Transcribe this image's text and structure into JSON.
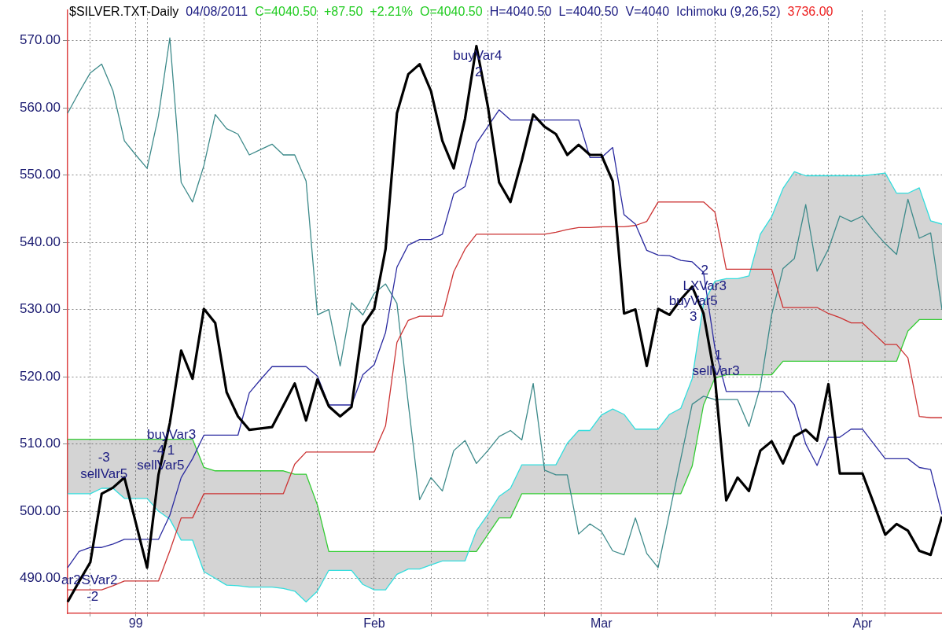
{
  "chart_data": {
    "type": "line",
    "title": "$SILVER.TXT-Daily",
    "categories": [
      null,
      null,
      null,
      null,
      null,
      null,
      "99",
      null,
      null,
      null,
      null,
      null,
      null,
      null,
      null,
      null,
      null,
      null,
      null,
      null,
      null,
      null,
      null,
      null,
      null,
      null,
      null,
      "Feb",
      null,
      null,
      null,
      null,
      null,
      null,
      null,
      null,
      null,
      null,
      null,
      null,
      null,
      null,
      null,
      null,
      null,
      null,
      null,
      "Mar",
      null,
      null,
      null,
      null,
      null,
      null,
      null,
      null,
      null,
      null,
      null,
      null,
      null,
      null,
      null,
      null,
      null,
      null,
      null,
      null,
      null,
      null,
      "Apr",
      null,
      null,
      null,
      null,
      null,
      null,
      null
    ],
    "series": [
      {
        "color": "#000000",
        "values": [
          486.5,
          489.5,
          492.4,
          502.6,
          503.5,
          505.0,
          498.3,
          491.6,
          505.4,
          513.1,
          523.9,
          519.7,
          530.1,
          528.0,
          517.7,
          514.1,
          512.1,
          512.3,
          512.5,
          515.7,
          519.0,
          513.5,
          519.6,
          515.6,
          514.1,
          515.5,
          527.6,
          530.1,
          539.0,
          559.2,
          565.0,
          566.5,
          562.5,
          555.1,
          551.0,
          558.4,
          569.2,
          560.3,
          548.9,
          546.0,
          552.2,
          559.0,
          557.2,
          556.1,
          553.0,
          554.5,
          553.0,
          553.0,
          549.1,
          529.4,
          530.0,
          521.6,
          530.1,
          529.2,
          531.5,
          533.4,
          529.4,
          519.9,
          501.6,
          505.0,
          503.0,
          509.0,
          510.4,
          507.1,
          511.1,
          512.1,
          510.5,
          518.9,
          505.6,
          505.6,
          505.6,
          501.1,
          496.5,
          498.1,
          497.1,
          494.1,
          493.5,
          499.2
        ]
      },
      {
        "color": "#2b2ba0",
        "values": [
          491.6,
          494.0,
          494.6,
          494.6,
          495.1,
          495.8,
          495.8,
          495.8,
          495.8,
          499.4,
          505.0,
          507.8,
          511.3,
          511.3,
          511.3,
          511.3,
          517.6,
          519.6,
          521.5,
          521.5,
          521.5,
          521.5,
          520.1,
          515.8,
          515.8,
          515.8,
          520.3,
          521.8,
          526.6,
          536.3,
          539.6,
          540.4,
          540.4,
          541.2,
          547.2,
          548.3,
          554.7,
          557.2,
          559.7,
          558.2,
          558.2,
          558.2,
          558.2,
          558.2,
          558.2,
          558.2,
          552.6,
          552.6,
          554.1,
          544.1,
          542.7,
          538.8,
          538.1,
          538.0,
          537.3,
          537.1,
          535.5,
          524.3,
          517.8,
          517.8,
          517.8,
          517.8,
          517.8,
          517.8,
          515.8,
          510.0,
          506.8,
          511.0,
          511.0,
          512.2,
          512.2,
          510.0,
          507.8,
          507.8,
          507.8,
          506.5,
          506.2,
          499.5
        ]
      },
      {
        "color": "#cc3333",
        "values": [
          488.3,
          488.3,
          488.3,
          488.3,
          488.9,
          489.6,
          489.6,
          489.6,
          489.6,
          494.1,
          499.0,
          499.0,
          502.6,
          502.6,
          502.6,
          502.6,
          502.6,
          502.6,
          502.6,
          502.6,
          507.0,
          508.8,
          508.8,
          508.8,
          508.8,
          508.8,
          508.8,
          508.8,
          512.7,
          525.1,
          528.4,
          529.0,
          529.0,
          529.0,
          535.6,
          539.0,
          541.2,
          541.2,
          541.2,
          541.2,
          541.2,
          541.2,
          541.2,
          541.5,
          541.9,
          542.2,
          542.2,
          542.3,
          542.3,
          542.3,
          542.5,
          543.1,
          546.0,
          546.0,
          546.0,
          546.0,
          546.0,
          544.5,
          536.0,
          536.0,
          536.0,
          536.0,
          536.0,
          530.3,
          530.3,
          530.3,
          530.3,
          529.4,
          528.8,
          528.0,
          528.0,
          526.4,
          524.8,
          524.8,
          522.8,
          514.1,
          513.9,
          513.9
        ]
      },
      {
        "color": "#3d8a8a",
        "values": [
          559.2,
          562.3,
          565.2,
          566.5,
          562.5,
          555.1,
          553.0,
          551.0,
          558.8,
          570.4,
          548.9,
          546.0,
          551.4,
          559.0,
          556.9,
          556.1,
          553.0,
          553.8,
          554.6,
          553.0,
          553.0,
          549.1,
          529.2,
          530.0,
          521.6,
          531.0,
          529.2,
          532.4,
          533.8,
          530.9,
          516.0,
          501.7,
          505.0,
          503.0,
          509.0,
          510.5,
          507.1,
          509.0,
          511.1,
          512.0,
          510.6,
          519.0,
          506.1,
          505.4,
          505.4,
          496.6,
          498.1,
          497.0,
          494.1,
          493.5,
          499.0,
          493.7,
          491.6,
          499.7,
          507.8,
          515.9,
          517.1,
          516.6,
          516.6,
          516.6,
          512.6,
          518.5,
          529.2,
          536.1,
          537.6,
          545.6,
          535.7,
          539.0,
          543.9,
          543.1,
          543.9,
          541.7,
          539.8,
          538.2,
          546.4,
          540.6,
          541.4,
          530.0
        ]
      },
      {
        "color": "#33dddd",
        "values": [
          502.6,
          502.6,
          502.6,
          503.4,
          503.4,
          501.9,
          501.9,
          501.9,
          500.0,
          498.8,
          495.7,
          495.7,
          491.0,
          490.0,
          489.0,
          488.9,
          488.7,
          488.7,
          488.7,
          488.5,
          488.1,
          486.5,
          488.1,
          491.2,
          491.2,
          491.2,
          489.1,
          488.3,
          488.3,
          490.6,
          491.4,
          491.4,
          492.0,
          492.6,
          492.6,
          492.6,
          497.1,
          499.5,
          502.2,
          503.4,
          506.9,
          506.9,
          506.9,
          506.9,
          510.1,
          512.0,
          512.0,
          514.3,
          515.2,
          514.4,
          512.2,
          512.2,
          512.2,
          514.4,
          515.3,
          519.7,
          530.9,
          534.2,
          534.6,
          534.6,
          535.0,
          541.2,
          543.8,
          548.0,
          550.5,
          549.9,
          549.9,
          549.9,
          549.9,
          549.9,
          549.9,
          550.1,
          550.3,
          547.3,
          547.3,
          548.1,
          543.2,
          542.7
        ]
      },
      {
        "color": "#33cc33",
        "lower": [
          510.7,
          510.7,
          510.7,
          510.7,
          510.7,
          510.7,
          510.7,
          510.7,
          510.7,
          510.7,
          510.7,
          510.7,
          506.5,
          506.0,
          506.0,
          506.0,
          506.0,
          506.0,
          506.0,
          506.0,
          505.5,
          505.5,
          500.9,
          494.0,
          494.0,
          494.0,
          494.0,
          494.0,
          494.0,
          494.0,
          494.0,
          494.0,
          494.0,
          494.0,
          494.0,
          494.0,
          494.0,
          496.5,
          499.0,
          499.0,
          502.6,
          502.6,
          502.6,
          502.6,
          502.6,
          502.6,
          502.6,
          502.6,
          502.6,
          502.6,
          502.6,
          502.6,
          502.6,
          502.6,
          502.6,
          506.7,
          515.8,
          519.8,
          520.3,
          520.3,
          520.3,
          520.3,
          520.3,
          522.3,
          522.3,
          522.3,
          522.3,
          522.3,
          522.3,
          522.3,
          522.3,
          522.3,
          522.3,
          522.3,
          526.8,
          528.5,
          528.5,
          528.5
        ],
        "upper": [
          502.6,
          502.6,
          502.6,
          503.4,
          503.4,
          501.9,
          501.9,
          501.9,
          500.0,
          498.8,
          495.7,
          495.7,
          491.0,
          490.0,
          489.0,
          488.9,
          488.7,
          488.7,
          488.7,
          488.5,
          488.1,
          486.5,
          488.1,
          491.2,
          491.2,
          491.2,
          489.1,
          488.3,
          488.3,
          490.6,
          491.4,
          491.4,
          492.0,
          492.6,
          492.6,
          492.6,
          497.1,
          499.5,
          502.2,
          503.4,
          506.9,
          506.9,
          506.9,
          506.9,
          510.1,
          512.0,
          512.0,
          514.3,
          515.2,
          514.4,
          512.2,
          512.2,
          512.2,
          514.4,
          515.3,
          519.7,
          530.9,
          534.2,
          534.6,
          534.6,
          535.0,
          541.2,
          543.8,
          548.0,
          550.5,
          549.9,
          549.9,
          549.9,
          549.9,
          549.9,
          549.9,
          550.1,
          550.3,
          547.3,
          547.3,
          548.1,
          543.2,
          542.7
        ],
        "values": [
          510.7,
          510.7,
          510.7,
          510.7,
          510.7,
          510.7,
          510.7,
          510.7,
          510.7,
          510.7,
          510.7,
          510.7,
          506.5,
          506.0,
          506.0,
          506.0,
          506.0,
          506.0,
          506.0,
          506.0,
          505.5,
          505.5,
          500.9,
          494.0,
          494.0,
          494.0,
          494.0,
          494.0,
          494.0,
          494.0,
          494.0,
          494.0,
          494.0,
          494.0,
          494.0,
          494.0,
          494.0,
          496.5,
          499.0,
          499.0,
          502.6,
          502.6,
          502.6,
          502.6,
          502.6,
          502.6,
          502.6,
          502.6,
          502.6,
          502.6,
          502.6,
          502.6,
          502.6,
          502.6,
          502.6,
          506.7,
          515.8,
          519.8,
          520.3,
          520.3,
          520.3,
          520.3,
          520.3,
          522.3,
          522.3,
          522.3,
          522.3,
          522.3,
          522.3,
          522.3,
          522.3,
          522.3,
          522.3,
          522.3,
          526.8,
          528.5,
          528.5,
          528.5
        ]
      }
    ],
    "ylim": [
      484.8,
      574.5
    ],
    "yticks": [
      {
        "value": 490,
        "label": "490.00"
      },
      {
        "value": 500,
        "label": "500.00"
      },
      {
        "value": 510,
        "label": "510.00"
      },
      {
        "value": 520,
        "label": "520.00"
      },
      {
        "value": 530,
        "label": "530.00"
      },
      {
        "value": 540,
        "label": "540.00"
      },
      {
        "value": 550,
        "label": "550.00"
      },
      {
        "value": 560,
        "label": "560.00"
      },
      {
        "value": 570,
        "label": "570.00"
      }
    ],
    "grid": true,
    "legend": false,
    "marker": "none",
    "line_style": "solid",
    "annotations": [
      "04/08/2011",
      "C=4040.50",
      "+87.50",
      "+2.21%",
      "O=4040.50",
      "H=4040.50",
      "L=4040.50",
      "V=4040",
      "Ichimoku (9,26,52)",
      "3736.00",
      "ar2",
      "SVar2",
      "-2",
      "-3",
      "sellVar5",
      "buyVar3",
      "-4",
      "1",
      "sellVar5",
      "buyVar4",
      "2",
      "2",
      "LXVar3",
      "buyVar5",
      "3",
      "1",
      "sellVar3"
    ]
  }
}
